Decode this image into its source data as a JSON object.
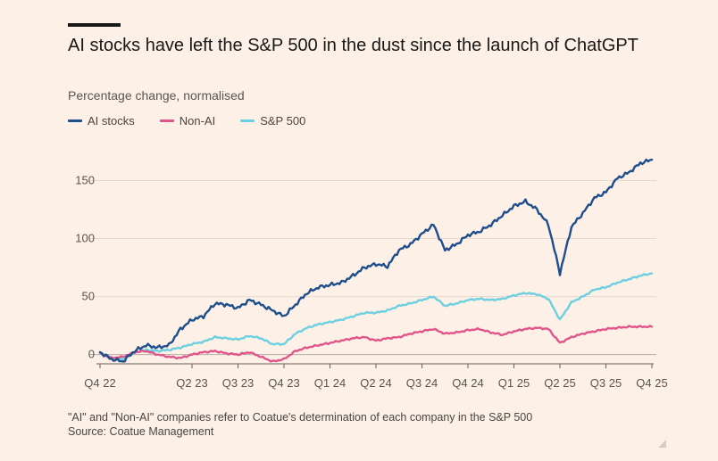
{
  "header": {
    "title": "AI stocks have left the S&P 500 in the dust since the launch of ChatGPT",
    "subtitle": "Percentage change, normalised"
  },
  "footer": {
    "note": "\"AI\" and \"Non-AI\" companies refer to Coatue's determination of each company in the S&P 500",
    "source": "Source: Coatue Management"
  },
  "chart_data": {
    "type": "line",
    "title": "AI stocks have left the S&P 500 in the dust since the launch of ChatGPT",
    "subtitle": "Percentage change, normalised",
    "xlabel": "",
    "ylabel": "Percentage change, normalised",
    "ylim": [
      -8,
      175
    ],
    "yticks": [
      0,
      50,
      100,
      150
    ],
    "grid": true,
    "legend_position": "top-left",
    "x_tick_labels": [
      "Q4 22",
      "Q2 23",
      "Q3 23",
      "Q4 23",
      "Q1 24",
      "Q2 24",
      "Q3 24",
      "Q4 24",
      "Q1 25",
      "Q2 25",
      "Q3 25",
      "Q4 25"
    ],
    "x_tick_positions": [
      0,
      2,
      3,
      4,
      5,
      6,
      7,
      8,
      9,
      10,
      11,
      12
    ],
    "x": [
      0,
      0.25,
      0.5,
      0.75,
      1,
      1.25,
      1.5,
      1.75,
      2,
      2.25,
      2.5,
      2.75,
      3,
      3.25,
      3.5,
      3.75,
      4,
      4.25,
      4.5,
      4.75,
      5,
      5.25,
      5.5,
      5.75,
      6,
      6.25,
      6.5,
      6.75,
      7,
      7.25,
      7.5,
      7.75,
      8,
      8.25,
      8.5,
      8.75,
      9,
      9.25,
      9.5,
      9.75,
      10,
      10.25,
      10.5,
      10.75,
      11,
      11.25,
      11.5,
      11.75,
      12
    ],
    "series": [
      {
        "name": "AI stocks",
        "color": "#1e4e8c",
        "values": [
          2,
          -4,
          -6,
          3,
          8,
          6,
          8,
          22,
          30,
          33,
          44,
          43,
          40,
          47,
          43,
          38,
          33,
          43,
          53,
          58,
          60,
          62,
          68,
          75,
          78,
          76,
          90,
          95,
          104,
          112,
          90,
          95,
          103,
          106,
          112,
          120,
          128,
          132,
          125,
          112,
          70,
          110,
          122,
          135,
          140,
          152,
          157,
          165,
          168
        ]
      },
      {
        "name": "Non-AI",
        "color": "#e0558a",
        "values": [
          1,
          -3,
          -2,
          2,
          3,
          0,
          -2,
          -3,
          0,
          2,
          3,
          1,
          0,
          2,
          -2,
          -6,
          -4,
          3,
          6,
          8,
          10,
          12,
          14,
          15,
          12,
          14,
          15,
          18,
          20,
          22,
          18,
          19,
          21,
          22,
          19,
          17,
          20,
          22,
          23,
          22,
          10,
          15,
          18,
          20,
          22,
          23,
          24,
          24,
          24
        ]
      },
      {
        "name": "S&P 500",
        "color": "#6dd0e0",
        "values": [
          1,
          -3,
          -4,
          2,
          4,
          3,
          4,
          6,
          9,
          11,
          15,
          14,
          13,
          16,
          14,
          9,
          9,
          18,
          23,
          26,
          28,
          30,
          33,
          36,
          36,
          38,
          42,
          44,
          47,
          50,
          42,
          44,
          47,
          48,
          47,
          48,
          51,
          53,
          52,
          48,
          30,
          45,
          50,
          56,
          58,
          62,
          65,
          68,
          70
        ]
      }
    ]
  }
}
